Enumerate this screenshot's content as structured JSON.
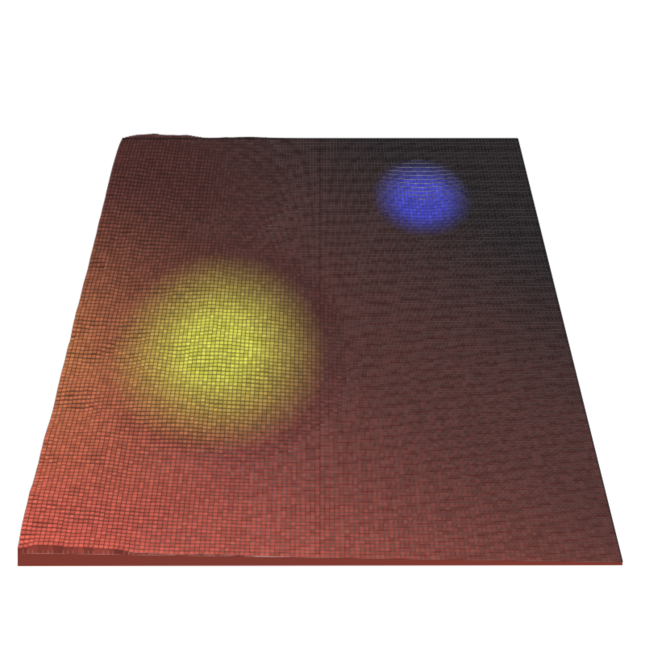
{
  "scene": {
    "subject": "voxel-terrain-surface",
    "background_color": "#ffffff",
    "grid_line_color": "#1a1a1a",
    "palette": {
      "warm_red": "#e86a5a",
      "salmon": "#d9775f",
      "orange": "#e09a55",
      "yellow_green": "#d8d457",
      "dark_brown": "#3a2a2a",
      "near_black": "#2b2628",
      "blue": "#4a4cc8"
    },
    "features": [
      {
        "name": "rugged-yellow-plateau",
        "color": "#d8d457"
      },
      {
        "name": "blue-crater",
        "color": "#4a4cc8"
      },
      {
        "name": "rough-left-ridge",
        "color": "#e09a55"
      }
    ]
  }
}
